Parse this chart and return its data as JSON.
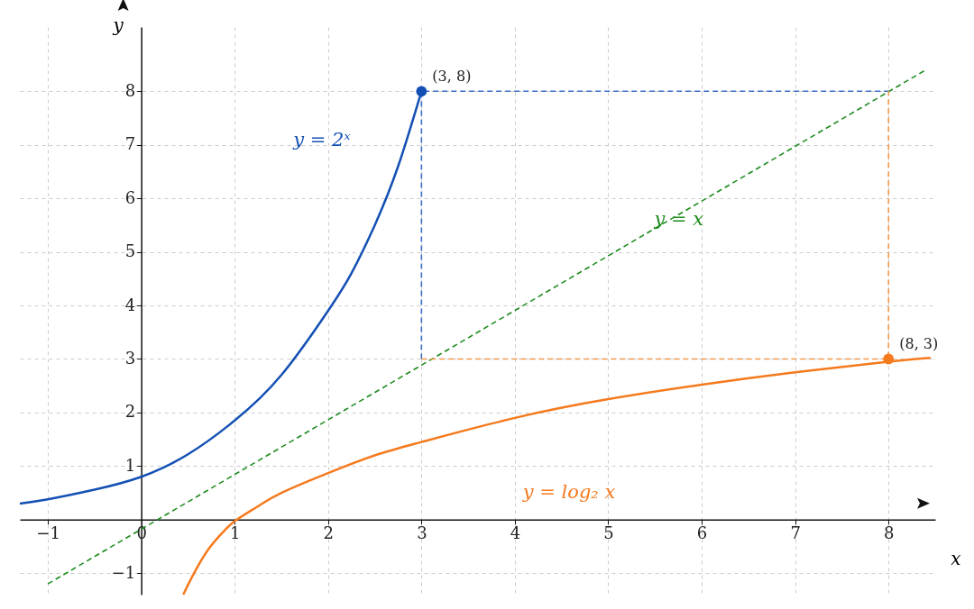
{
  "chart_data": {
    "type": "line",
    "xlabel": "x",
    "ylabel": "y",
    "xlim": [
      -1.3,
      8.5
    ],
    "ylim": [
      -1.4,
      9.2
    ],
    "xticks": [
      -1,
      0,
      1,
      2,
      3,
      4,
      5,
      6,
      7,
      8
    ],
    "yticks": [
      -1,
      1,
      2,
      3,
      4,
      5,
      6,
      7,
      8
    ],
    "grid": true,
    "series": [
      {
        "color": "#1450b4",
        "x": [
          -1.3,
          -1,
          -0.5,
          0,
          0.5,
          1,
          1.5,
          2,
          2.25,
          2.5,
          2.75,
          3
        ],
        "values": [
          0.3,
          0.38,
          0.56,
          0.8,
          1.22,
          1.85,
          2.7,
          3.9,
          4.6,
          5.5,
          6.6,
          8
        ],
        "line_style": "solid",
        "marker": "none"
      },
      {
        "color": "#f57a1e",
        "x": [
          0.45,
          0.55,
          0.7,
          0.85,
          1,
          1.25,
          1.5,
          2,
          2.5,
          3,
          4,
          5,
          6,
          7,
          8,
          8.45
        ],
        "values": [
          -1.4,
          -1.05,
          -0.6,
          -0.28,
          -0.03,
          0.25,
          0.5,
          0.87,
          1.2,
          1.45,
          1.9,
          2.25,
          2.52,
          2.75,
          2.95,
          3.02
        ],
        "line_style": "solid",
        "marker": "none"
      },
      {
        "color": "#1f8c1f",
        "x": [
          -1,
          8.4
        ],
        "values": [
          -1.2,
          8.4
        ],
        "line_style": "dashed",
        "marker": "none"
      },
      {
        "color": "#3a6fc4",
        "x": [
          3,
          3,
          8
        ],
        "values": [
          3,
          8,
          8
        ],
        "line_style": "dashed",
        "marker": "none"
      },
      {
        "color": "#f5964a",
        "x": [
          3,
          8,
          8
        ],
        "values": [
          3,
          3,
          8
        ],
        "line_style": "dashed",
        "marker": "none"
      },
      {
        "type": "scatter",
        "color": "#1450b4",
        "x": [
          3
        ],
        "values": [
          8
        ],
        "marker": "circle",
        "value_labels": [
          "(3, 8)"
        ]
      },
      {
        "type": "scatter",
        "color": "#f57a1e",
        "x": [
          8
        ],
        "values": [
          3
        ],
        "marker": "circle",
        "value_labels": [
          "(8, 3)"
        ]
      }
    ],
    "annotations": [
      "y = 2ˣ",
      "y = log₂ x",
      "y = x"
    ]
  }
}
